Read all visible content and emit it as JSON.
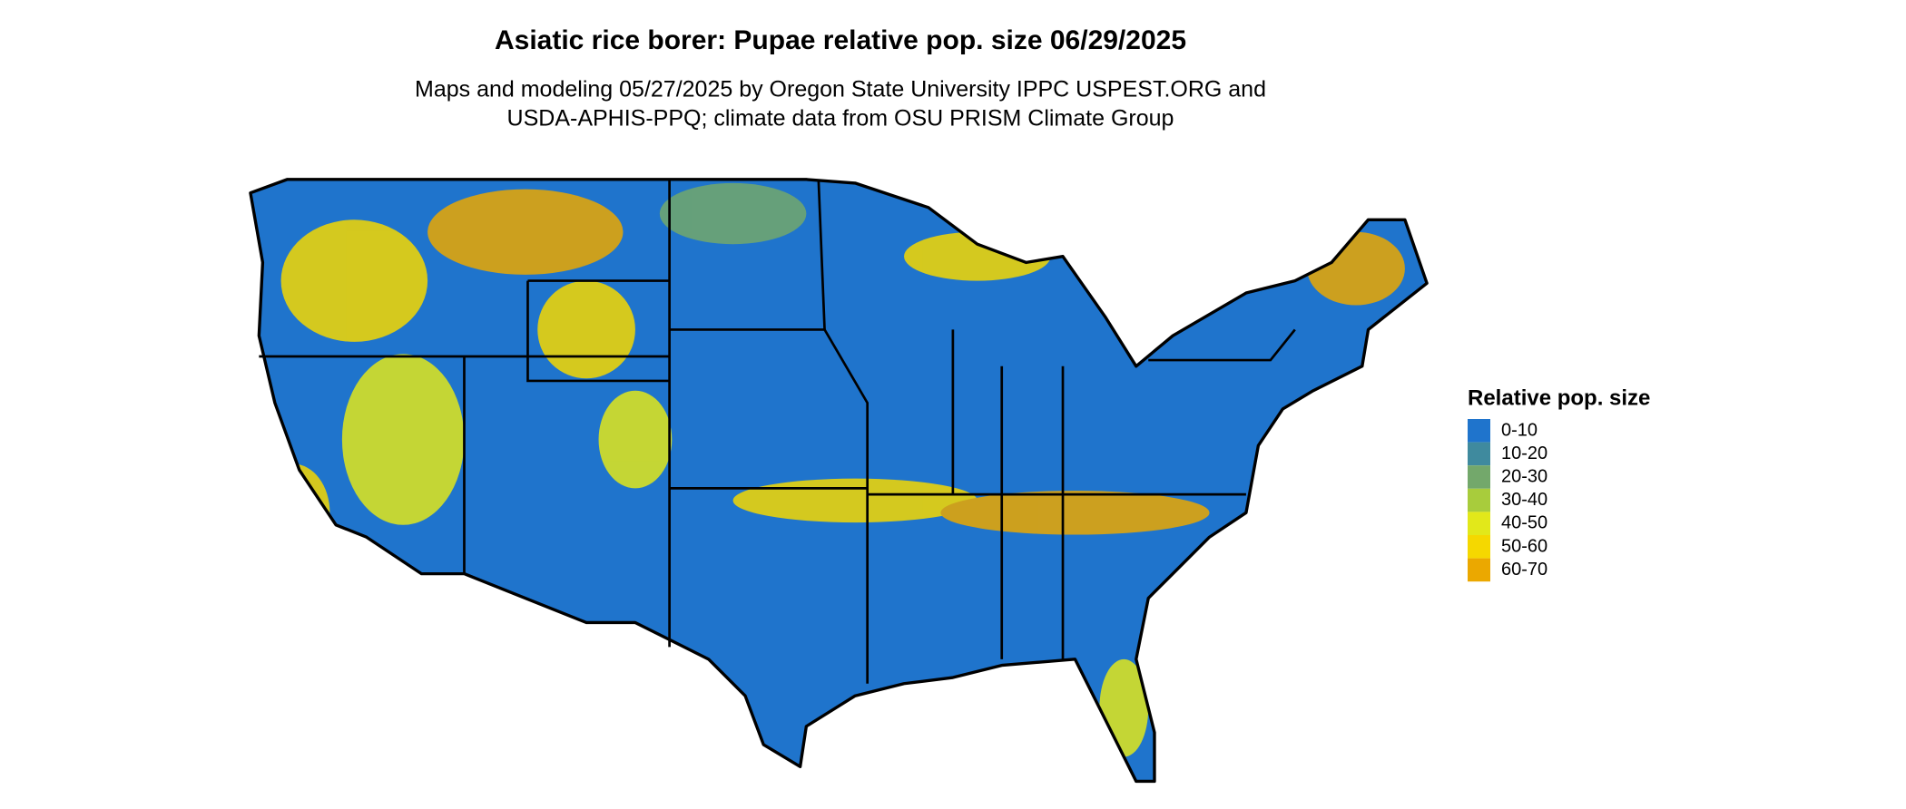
{
  "title": "Asiatic rice borer: Pupae relative pop. size 06/29/2025",
  "subtitle": [
    "Maps and modeling 05/27/2025 by Oregon State University IPPC USPEST.ORG and",
    "USDA-APHIS-PPQ; climate data from OSU PRISM Climate Group"
  ],
  "legend": {
    "title": "Relative pop. size",
    "items": [
      {
        "label": "0-10",
        "color": "#1f74cc"
      },
      {
        "label": "10-20",
        "color": "#3f8a9e"
      },
      {
        "label": "20-30",
        "color": "#73a86b"
      },
      {
        "label": "30-40",
        "color": "#a8cc3c"
      },
      {
        "label": "40-50",
        "color": "#e2e81a"
      },
      {
        "label": "50-60",
        "color": "#f5d800"
      },
      {
        "label": "60-70",
        "color": "#eba800"
      }
    ]
  }
}
